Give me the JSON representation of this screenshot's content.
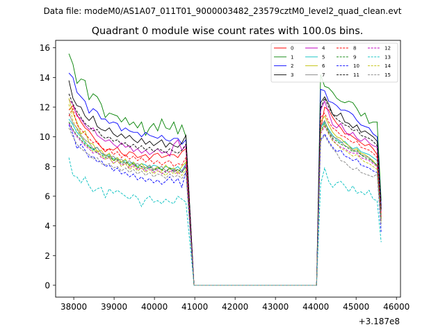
{
  "suptitle": "Data file: modeM0/AS1A07_011T01_9000003482_23579cztM0_level2_quad_clean.evt",
  "chart_data": {
    "type": "line",
    "title": "Quadrant 0 module wise count rates with 100.0s bins.",
    "xlabel": "",
    "ylabel": "",
    "x_offset_label": "+3.187e8",
    "xlim": [
      37550,
      46100
    ],
    "ylim": [
      -0.8,
      16.5
    ],
    "xticks": [
      38000,
      39000,
      40000,
      41000,
      42000,
      43000,
      44000,
      45000,
      46000
    ],
    "yticks": [
      0,
      2,
      4,
      6,
      8,
      10,
      12,
      14,
      16
    ],
    "grid": false,
    "legend_position": "top-right",
    "legend_columns": 4,
    "segments": {
      "first": {
        "start": 37880,
        "step": 100,
        "count": 30
      },
      "drop": [
        40980,
        44020
      ],
      "second": {
        "start": 44020,
        "step": 100,
        "count": 17
      }
    },
    "series": [
      {
        "name": "0",
        "color": "#ff0000",
        "dash": false,
        "first": [
          11.8,
          12.1,
          11.5,
          11.0,
          10.6,
          10.4,
          10.0,
          9.6,
          9.3,
          9.0,
          9.2,
          9.1,
          9.3,
          8.9,
          8.7,
          9.0,
          8.9,
          8.6,
          8.7,
          8.8,
          8.5,
          8.8,
          8.9,
          8.6,
          8.7,
          8.8,
          8.8,
          8.6,
          9.0,
          9.2
        ],
        "second": [
          0,
          10.5,
          12.0,
          11.8,
          11.3,
          10.9,
          10.6,
          10.2,
          10.2,
          10.0,
          9.8,
          9.6,
          9.4,
          9.5,
          9.2,
          8.8,
          4.8
        ]
      },
      {
        "name": "1",
        "color": "#008000",
        "dash": false,
        "first": [
          15.6,
          14.9,
          13.6,
          13.9,
          13.8,
          12.5,
          12.9,
          12.7,
          12.2,
          11.3,
          11.6,
          11.5,
          11.4,
          11.0,
          11.3,
          10.8,
          11.0,
          10.6,
          11.0,
          10.1,
          10.6,
          10.9,
          10.4,
          11.2,
          10.6,
          10.5,
          11.0,
          10.2,
          10.8,
          10.0
        ],
        "second": [
          0,
          14.2,
          13.4,
          13.3,
          13.0,
          12.6,
          12.4,
          12.3,
          12.4,
          12.3,
          11.9,
          11.4,
          11.6,
          10.9,
          11.0,
          11.0,
          5.7
        ]
      },
      {
        "name": "2",
        "color": "#0000ff",
        "dash": false,
        "first": [
          14.3,
          14.0,
          13.0,
          12.7,
          12.4,
          11.6,
          11.9,
          11.7,
          11.2,
          11.2,
          10.9,
          11.0,
          10.9,
          10.4,
          10.6,
          10.4,
          10.3,
          10.3,
          10.0,
          10.3,
          10.1,
          10.0,
          9.9,
          10.1,
          9.8,
          9.7,
          9.9,
          9.9,
          9.5,
          9.8
        ],
        "second": [
          0,
          13.2,
          13.1,
          12.4,
          12.3,
          12.1,
          11.8,
          11.8,
          11.7,
          11.5,
          11.1,
          10.8,
          10.7,
          10.6,
          10.2,
          10.0,
          5.3
        ]
      },
      {
        "name": "3",
        "color": "#000000",
        "dash": false,
        "first": [
          13.8,
          12.6,
          12.1,
          12.0,
          11.4,
          11.1,
          11.4,
          10.7,
          10.5,
          10.4,
          10.6,
          10.2,
          10.0,
          10.2,
          9.9,
          10.1,
          9.8,
          9.6,
          9.9,
          9.5,
          9.7,
          9.4,
          9.6,
          9.8,
          9.3,
          9.6,
          9.4,
          9.3,
          9.6,
          10.1
        ],
        "second": [
          0,
          12.3,
          12.7,
          12.2,
          11.5,
          11.4,
          11.6,
          11.0,
          10.9,
          10.6,
          10.8,
          10.3,
          10.4,
          10.2,
          10.0,
          9.7,
          5.2
        ]
      },
      {
        "name": "4",
        "color": "#bf00bf",
        "dash": false,
        "first": [
          12.5,
          12.2,
          11.4,
          11.2,
          10.8,
          10.5,
          10.6,
          10.1,
          9.9,
          9.7,
          9.8,
          9.5,
          9.3,
          9.6,
          9.3,
          9.4,
          9.0,
          9.2,
          8.9,
          9.1,
          8.8,
          9.0,
          9.2,
          8.9,
          9.0,
          8.7,
          9.5,
          9.8,
          9.1,
          9.4
        ],
        "second": [
          0,
          11.8,
          12.4,
          11.6,
          10.8,
          10.6,
          10.9,
          10.4,
          10.1,
          10.3,
          9.9,
          9.7,
          9.9,
          9.6,
          9.4,
          9.3,
          5.0
        ]
      },
      {
        "name": "5",
        "color": "#00bfbf",
        "dash": false,
        "first": [
          11.2,
          10.8,
          10.3,
          10.0,
          9.6,
          9.4,
          9.1,
          9.3,
          8.9,
          8.7,
          8.8,
          8.5,
          8.6,
          8.3,
          8.4,
          8.2,
          8.3,
          8.0,
          8.2,
          8.1,
          7.9,
          8.1,
          8.0,
          7.8,
          8.0,
          7.9,
          7.8,
          8.0,
          7.7,
          8.2
        ],
        "second": [
          0,
          10.6,
          11.0,
          10.5,
          10.1,
          9.8,
          9.6,
          9.7,
          9.4,
          9.2,
          9.3,
          9.0,
          8.9,
          8.8,
          8.6,
          8.4,
          4.6
        ]
      },
      {
        "name": "6",
        "color": "#bfbf00",
        "dash": false,
        "first": [
          12.6,
          11.6,
          11.0,
          10.2,
          10.4,
          9.6,
          9.5,
          9.0,
          9.1,
          8.7,
          8.9,
          8.4,
          8.6,
          8.3,
          8.5,
          8.0,
          8.3,
          7.9,
          8.2,
          7.9,
          8.1,
          7.8,
          8.0,
          7.7,
          8.1,
          7.8,
          7.9,
          7.6,
          8.0,
          8.3
        ],
        "second": [
          0,
          11.0,
          11.4,
          10.8,
          10.3,
          10.0,
          9.9,
          9.6,
          9.4,
          9.1,
          9.2,
          8.9,
          8.8,
          8.6,
          8.4,
          8.0,
          4.4
        ]
      },
      {
        "name": "7",
        "color": "#808080",
        "dash": false,
        "first": [
          11.6,
          10.9,
          10.6,
          10.1,
          9.8,
          9.6,
          9.2,
          9.3,
          8.9,
          8.8,
          8.6,
          8.7,
          8.4,
          8.5,
          8.2,
          8.4,
          8.1,
          8.2,
          8.0,
          7.9,
          8.1,
          7.8,
          7.9,
          8.0,
          7.7,
          7.9,
          7.6,
          7.8,
          7.6,
          8.0
        ],
        "second": [
          0,
          10.7,
          11.1,
          10.4,
          10.0,
          9.9,
          9.7,
          9.4,
          9.3,
          9.1,
          9.0,
          8.8,
          8.7,
          8.6,
          8.3,
          8.1,
          4.3
        ]
      },
      {
        "name": "8",
        "color": "#ff0000",
        "dash": true,
        "first": [
          11.4,
          11.9,
          10.8,
          10.5,
          10.2,
          9.9,
          9.6,
          9.7,
          9.3,
          9.1,
          9.2,
          8.8,
          9.0,
          8.6,
          8.8,
          8.5,
          8.7,
          8.4,
          8.6,
          8.3,
          8.5,
          8.2,
          8.4,
          8.1,
          8.3,
          8.4,
          8.0,
          8.2,
          8.1,
          8.6
        ],
        "second": [
          0,
          11.3,
          11.6,
          11.0,
          10.6,
          10.4,
          10.1,
          10.0,
          9.8,
          9.6,
          9.7,
          9.3,
          9.2,
          9.1,
          8.9,
          8.6,
          4.6
        ]
      },
      {
        "name": "9",
        "color": "#008000",
        "dash": true,
        "first": [
          11.0,
          10.5,
          10.1,
          9.8,
          9.5,
          9.3,
          9.2,
          8.9,
          8.8,
          8.6,
          8.7,
          8.4,
          8.5,
          8.2,
          8.3,
          8.1,
          8.2,
          7.9,
          8.0,
          7.8,
          8.0,
          7.7,
          7.9,
          7.8,
          7.6,
          7.9,
          7.7,
          7.8,
          7.6,
          8.0
        ],
        "second": [
          0,
          10.4,
          10.9,
          10.3,
          9.9,
          9.7,
          9.5,
          9.4,
          9.2,
          9.0,
          9.1,
          8.8,
          8.6,
          8.5,
          8.3,
          8.1,
          4.4
        ]
      },
      {
        "name": "10",
        "color": "#0000ff",
        "dash": true,
        "first": [
          10.8,
          10.2,
          9.2,
          9.5,
          9.1,
          8.6,
          8.7,
          8.3,
          8.4,
          8.0,
          8.1,
          7.7,
          7.9,
          7.5,
          7.6,
          7.3,
          7.5,
          7.1,
          7.3,
          7.0,
          7.2,
          6.9,
          7.1,
          6.8,
          7.0,
          7.3,
          6.9,
          7.2,
          6.6,
          7.7
        ],
        "second": [
          0,
          9.8,
          10.2,
          9.7,
          9.3,
          9.0,
          9.1,
          8.7,
          8.6,
          8.4,
          8.5,
          8.1,
          8.0,
          7.9,
          7.7,
          7.6,
          3.6
        ]
      },
      {
        "name": "11",
        "color": "#000000",
        "dash": true,
        "first": [
          12.9,
          12.2,
          11.7,
          11.3,
          10.9,
          10.7,
          10.4,
          10.5,
          10.1,
          9.9,
          10.0,
          9.7,
          9.8,
          9.5,
          9.6,
          9.3,
          9.5,
          9.2,
          9.4,
          9.1,
          9.3,
          9.0,
          9.2,
          9.1,
          8.9,
          9.2,
          9.0,
          8.9,
          9.1,
          9.5
        ],
        "second": [
          0,
          11.9,
          12.6,
          12.0,
          11.5,
          11.2,
          11.0,
          10.8,
          10.7,
          10.4,
          10.5,
          10.1,
          10.0,
          9.9,
          9.7,
          9.4,
          5.1
        ]
      },
      {
        "name": "12",
        "color": "#bf00bf",
        "dash": true,
        "first": [
          10.9,
          10.4,
          10.0,
          9.7,
          9.4,
          9.2,
          8.9,
          9.0,
          8.6,
          8.5,
          8.6,
          8.2,
          8.4,
          8.1,
          8.2,
          7.9,
          8.1,
          7.8,
          7.9,
          7.7,
          7.9,
          7.6,
          7.8,
          7.5,
          7.7,
          7.6,
          7.8,
          7.5,
          7.7,
          8.1
        ],
        "second": [
          0,
          10.2,
          10.7,
          10.2,
          9.8,
          9.5,
          9.3,
          9.2,
          9.0,
          8.9,
          8.9,
          8.6,
          8.5,
          8.4,
          8.2,
          8.0,
          4.3
        ]
      },
      {
        "name": "13",
        "color": "#00bfbf",
        "dash": true,
        "first": [
          8.6,
          7.4,
          7.3,
          6.9,
          7.3,
          6.7,
          6.3,
          6.5,
          6.6,
          5.9,
          6.5,
          6.2,
          6.4,
          6.2,
          6.0,
          5.8,
          6.1,
          5.9,
          5.3,
          5.8,
          6.0,
          5.6,
          5.7,
          5.5,
          5.8,
          5.6,
          5.5,
          6.0,
          5.8,
          5.6
        ],
        "second": [
          0,
          6.8,
          7.9,
          7.0,
          6.6,
          6.9,
          7.0,
          6.7,
          6.3,
          6.7,
          6.2,
          6.3,
          6.1,
          6.4,
          5.8,
          5.7,
          2.9
        ]
      },
      {
        "name": "14",
        "color": "#bfbf00",
        "dash": true,
        "first": [
          12.2,
          11.1,
          10.5,
          10.0,
          9.7,
          9.3,
          9.0,
          9.1,
          8.7,
          8.5,
          8.6,
          8.2,
          8.4,
          8.0,
          8.2,
          7.8,
          8.0,
          7.7,
          7.9,
          7.6,
          7.8,
          7.5,
          7.7,
          7.6,
          7.4,
          7.7,
          7.5,
          7.6,
          7.4,
          7.8
        ],
        "second": [
          0,
          10.3,
          10.8,
          10.2,
          9.7,
          9.5,
          9.2,
          9.1,
          8.9,
          8.7,
          8.8,
          8.5,
          8.3,
          8.2,
          8.0,
          7.8,
          4.2
        ]
      },
      {
        "name": "15",
        "color": "#808080",
        "dash": true,
        "first": [
          10.6,
          10.0,
          9.5,
          9.2,
          9.0,
          8.8,
          8.5,
          8.6,
          8.2,
          8.1,
          8.2,
          7.9,
          8.0,
          7.7,
          7.9,
          7.6,
          7.8,
          7.5,
          7.7,
          7.4,
          7.6,
          7.3,
          7.5,
          7.4,
          7.2,
          7.5,
          7.3,
          7.4,
          7.2,
          7.6
        ],
        "second": [
          0,
          9.7,
          10.1,
          9.6,
          9.2,
          8.9,
          8.4,
          8.3,
          8.0,
          7.8,
          7.9,
          7.6,
          7.5,
          7.4,
          7.3,
          7.5,
          4.0
        ]
      }
    ]
  }
}
